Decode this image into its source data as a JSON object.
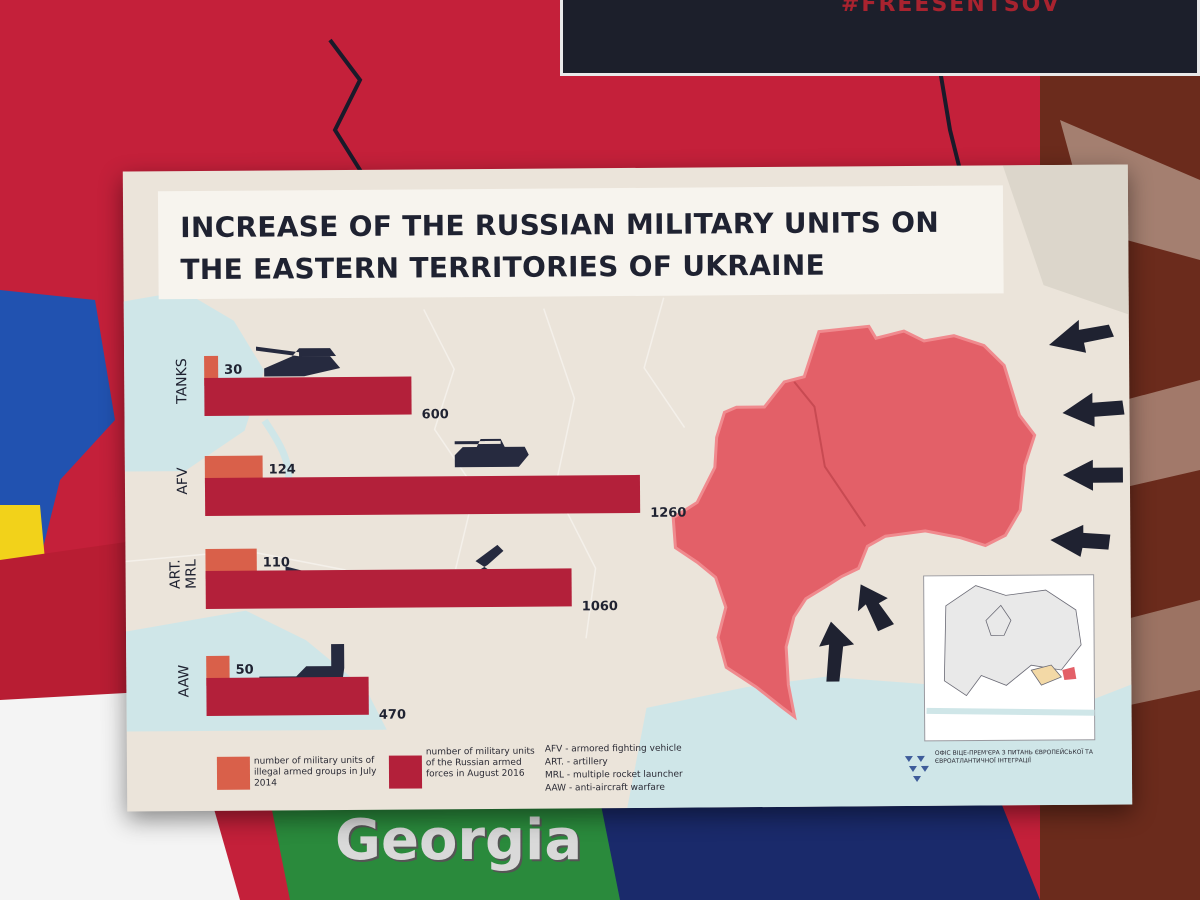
{
  "poster_text": "#FREESENTSOV",
  "background_label": "Georgia",
  "title": "INCREASE OF THE RUSSIAN MILITARY UNITS ON THE EASTERN TERRITORIES OF UKRAINE",
  "legend": {
    "illegal_groups": "number of military units of illegal armed groups in July 2014",
    "russian_forces": "number of military units of the Russian armed forces in August 2016"
  },
  "abbreviations": [
    "AFV - armored fighting vehicle",
    "ART. - artillery",
    "MRL - multiple rocket launcher",
    "AAW - anti-aircraft warfare"
  ],
  "ministry_text": "ОФІС ВІЦЕ-ПРЕМ'ЄРА З ПИТАНЬ ЄВРОПЕЙСЬКОЇ ТА ЄВРОАТЛАНТИЧНОЇ ІНТЕГРАЦІЇ",
  "colors": {
    "illegal_groups": "#d9604a",
    "russian_forces": "#b3203a",
    "occupied_region": "#e36068",
    "silhouettes": "#262a3f"
  },
  "chart_data": {
    "type": "bar",
    "orientation": "horizontal",
    "title": "INCREASE OF THE RUSSIAN MILITARY UNITS ON THE EASTERN TERRITORIES OF UKRAINE",
    "categories": [
      "TANKS",
      "AFV",
      "ART. MRL",
      "AAW"
    ],
    "series": [
      {
        "name": "number of military units of illegal armed groups in July 2014",
        "values": [
          30,
          124,
          110,
          50
        ]
      },
      {
        "name": "number of military units of the Russian armed forces in August 2016",
        "values": [
          600,
          1260,
          1060,
          470
        ]
      }
    ],
    "xlim": [
      0,
      1260
    ],
    "grid": false,
    "legend_position": "bottom"
  }
}
